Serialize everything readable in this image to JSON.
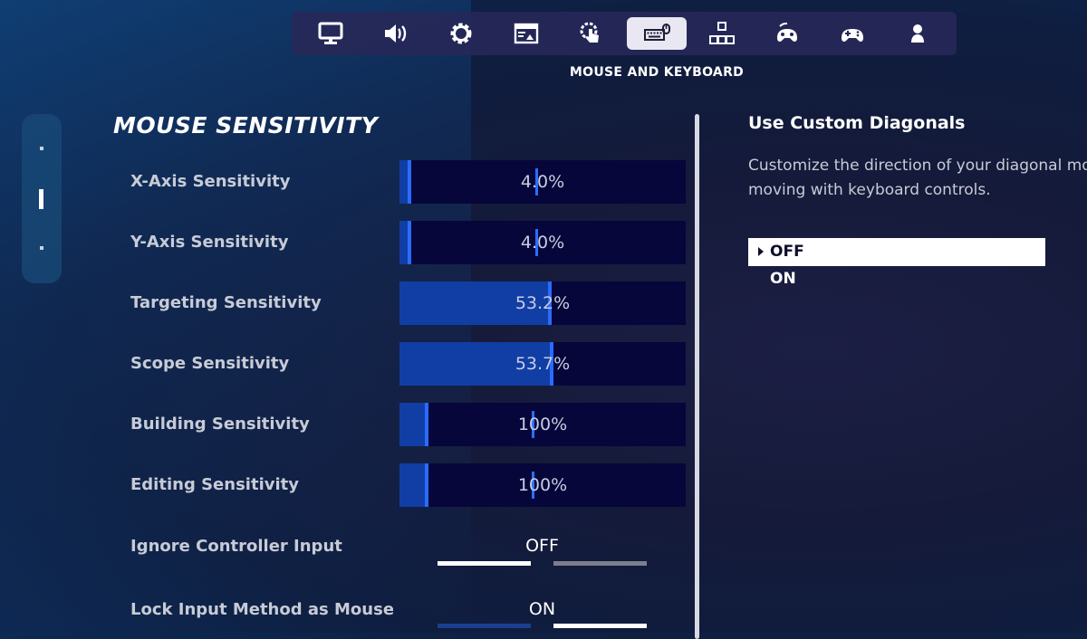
{
  "nav": {
    "caption": "MOUSE AND KEYBOARD",
    "tabs": [
      {
        "icon": "monitor-icon"
      },
      {
        "icon": "speaker-icon"
      },
      {
        "icon": "gear-icon"
      },
      {
        "icon": "display-settings-icon"
      },
      {
        "icon": "touch-icon"
      },
      {
        "icon": "keyboard-mouse-icon",
        "active": true
      },
      {
        "icon": "keybinds-icon"
      },
      {
        "icon": "controller-wireless-icon"
      },
      {
        "icon": "gamepad-icon"
      },
      {
        "icon": "account-icon"
      }
    ]
  },
  "section": {
    "title": "MOUSE SENSITIVITY",
    "sliders": [
      {
        "label": "X-Axis Sensitivity",
        "value": "4.0%",
        "fill": 0.04
      },
      {
        "label": "Y-Axis Sensitivity",
        "value": "4.0%",
        "fill": 0.04
      },
      {
        "label": "Targeting Sensitivity",
        "value": "53.2%",
        "fill": 0.532
      },
      {
        "label": "Scope Sensitivity",
        "value": "53.7%",
        "fill": 0.537
      },
      {
        "label": "Building Sensitivity",
        "value": "100%",
        "fill": 0.1
      },
      {
        "label": "Editing Sensitivity",
        "value": "100%",
        "fill": 0.1
      }
    ],
    "toggles": [
      {
        "label": "Ignore Controller Input",
        "value": "OFF",
        "state": "off"
      },
      {
        "label": "Lock Input Method as Mouse",
        "value": "ON",
        "state": "on"
      }
    ]
  },
  "detail": {
    "title": "Use Custom Diagonals",
    "description_line1": "Customize the direction of your diagonal mo",
    "description_line2": "moving with keyboard controls.",
    "options": [
      {
        "label": "OFF",
        "selected": true
      },
      {
        "label": "ON",
        "selected": false
      }
    ]
  },
  "colors": {
    "slider_fill": "#103ea5",
    "slider_track": "#06063b",
    "slider_marker": "#2d6dff",
    "active_tab": "#e9e8f2"
  }
}
